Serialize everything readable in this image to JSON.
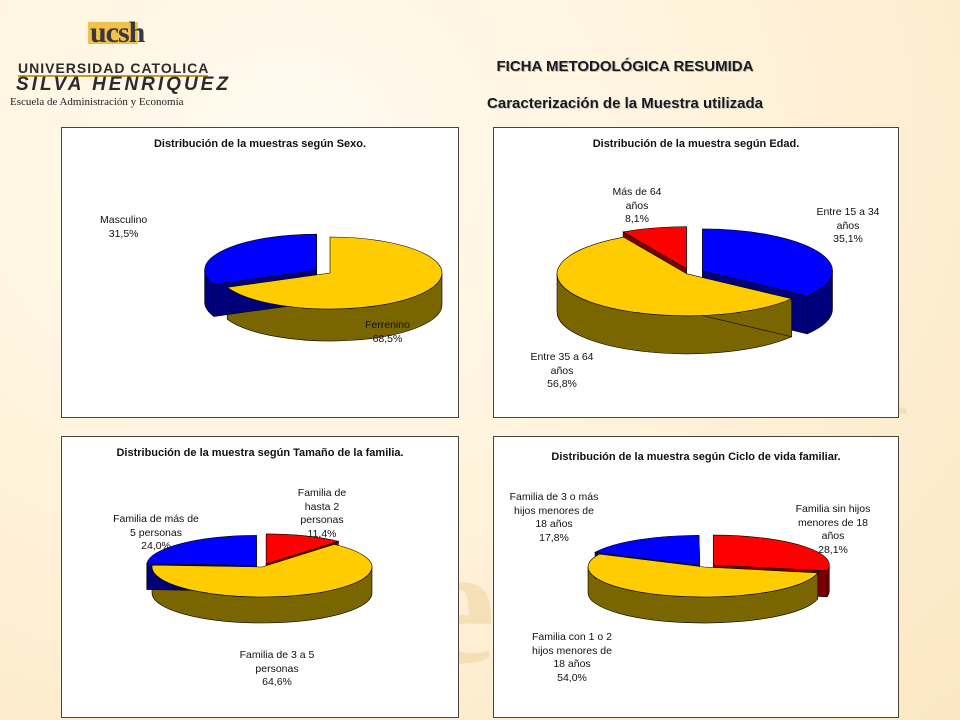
{
  "logo": {
    "short": "ucsh",
    "university": "UNIVERSIDAD CATOLICA",
    "name": "SILVA HENRIQUEZ",
    "school": "Escuela de Administración y Economía"
  },
  "header": {
    "title": "FICHA METODOLÓGICA RESUMIDA",
    "subtitle": "Caracterización de la Muestra utilizada"
  },
  "colors": {
    "yellow": "#FFCC00",
    "blue": "#0000FF",
    "red": "#FF0000"
  },
  "chart_data": [
    {
      "type": "pie",
      "title": "Distribución de la muestras según Sexo.",
      "slices": [
        {
          "label": "Ferrenino",
          "value": "68,5%",
          "pct": 68.5,
          "color": "yellow"
        },
        {
          "label": "Masculino",
          "value": "31,5%",
          "pct": 31.5,
          "color": "blue"
        }
      ]
    },
    {
      "type": "pie",
      "title": "Distribución de la muestra según Edad.",
      "slices": [
        {
          "label": "Entre 15 a 34 años",
          "value": "35,1%",
          "pct": 35.1,
          "color": "blue"
        },
        {
          "label": "Entre 35 a 64 años",
          "value": "56,8%",
          "pct": 56.8,
          "color": "yellow"
        },
        {
          "label": "Más de 64 años",
          "value": "8,1%",
          "pct": 8.1,
          "color": "red"
        }
      ]
    },
    {
      "type": "pie",
      "title": "Distribución de la muestra según Tamaño de la familia.",
      "slices": [
        {
          "label": "Familia de hasta 2 personas",
          "value": "11,4%",
          "pct": 11.4,
          "color": "red"
        },
        {
          "label": "Familia de 3 a 5 personas",
          "value": "64,6%",
          "pct": 64.6,
          "color": "yellow"
        },
        {
          "label": "Familia de más de 5 personas",
          "value": "24,0%",
          "pct": 24.0,
          "color": "blue"
        }
      ]
    },
    {
      "type": "pie",
      "title": "Distribución de la muestra según Ciclo de vida familiar.",
      "slices": [
        {
          "label": "Familia sin hijos menores de 18 años",
          "value": "28,1%",
          "pct": 28.1,
          "color": "red"
        },
        {
          "label": "Familia con 1 o 2 hijos menores de 18 años",
          "value": "54,0%",
          "pct": 54.0,
          "color": "yellow"
        },
        {
          "label": "Familia de 3 o más hijos menores de 18 años",
          "value": "17,8%",
          "pct": 17.8,
          "color": "blue"
        }
      ]
    }
  ]
}
